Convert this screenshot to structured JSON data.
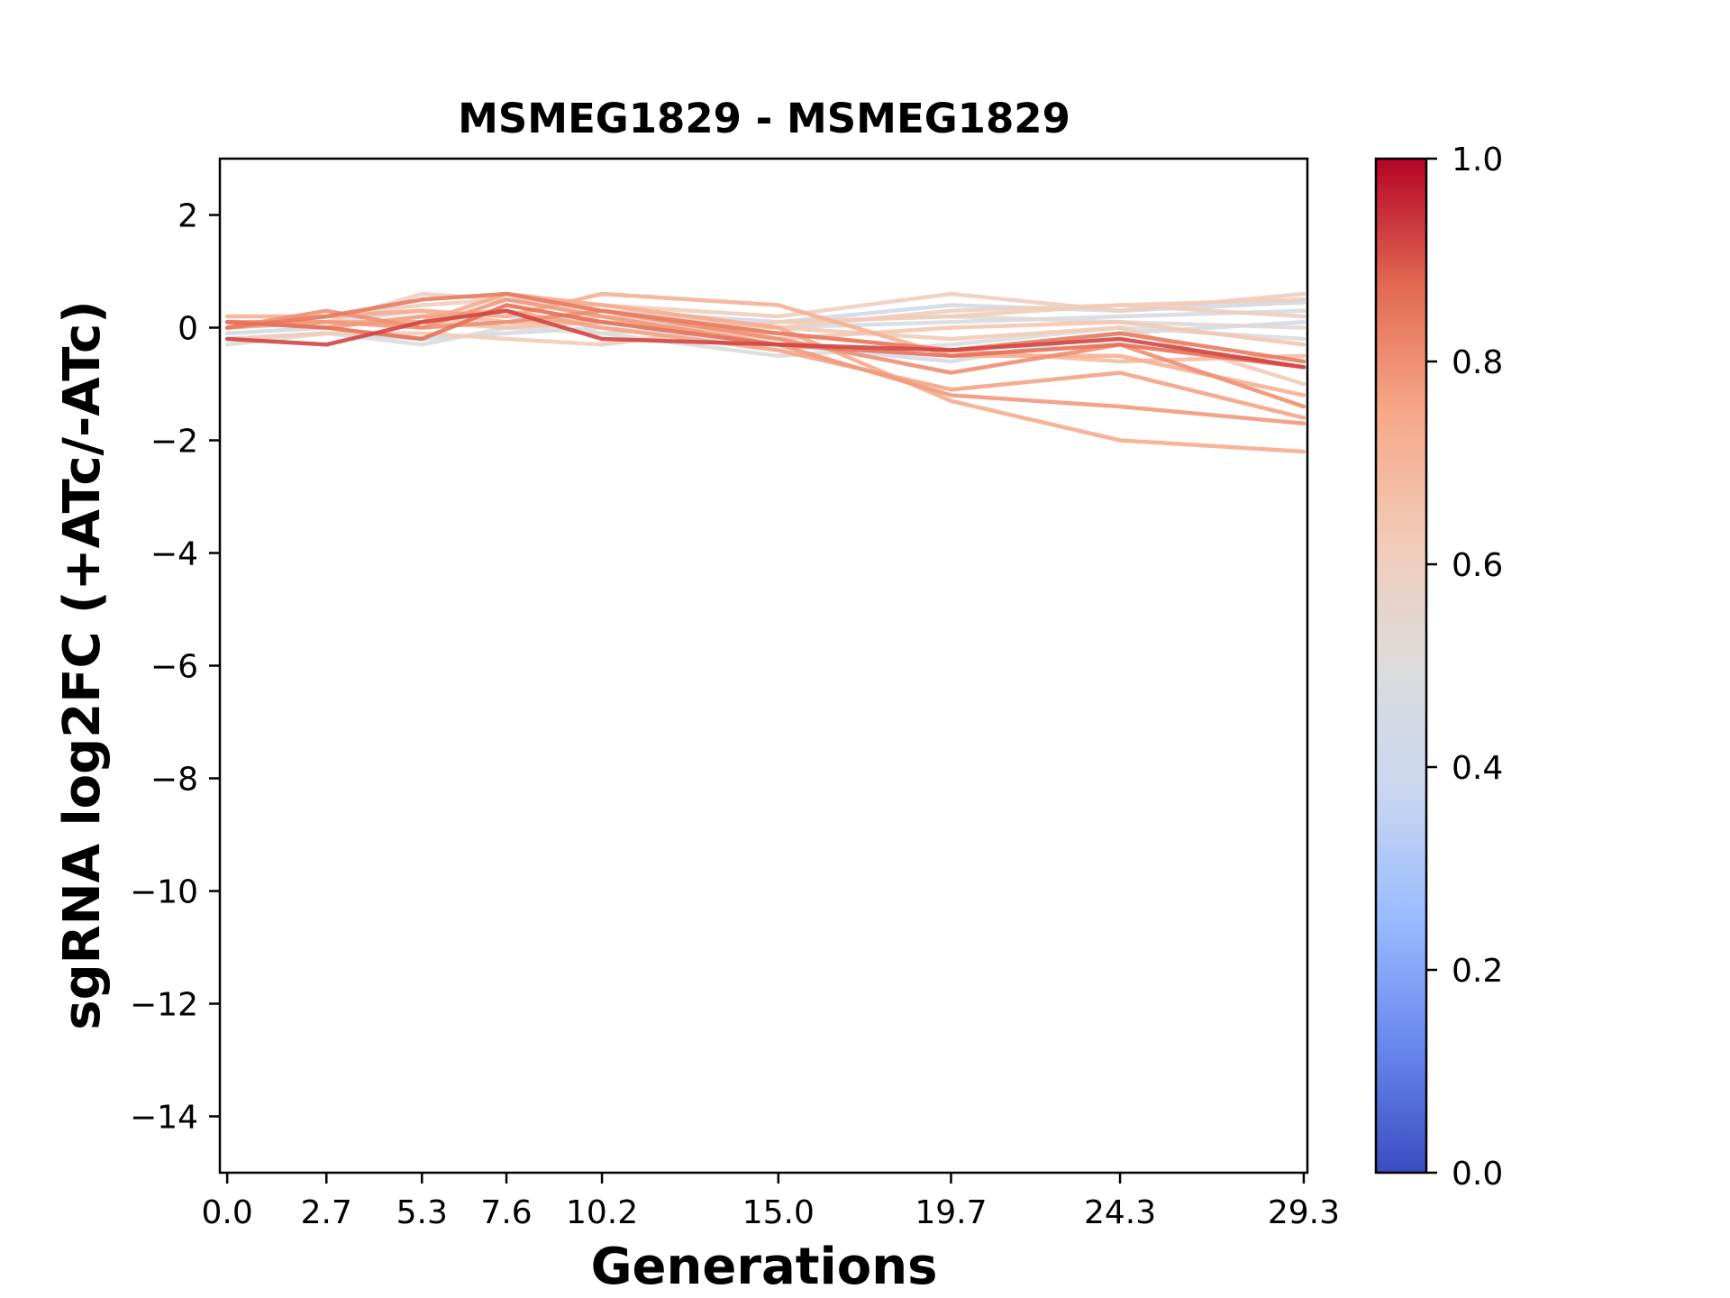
{
  "chart_data": {
    "type": "line",
    "title": "MSMEG1829 - MSMEG1829",
    "xlabel": "Generations",
    "ylabel": "sgRNA log2FC (+ATc/-ATc)",
    "x": [
      0.0,
      2.7,
      5.3,
      7.6,
      10.2,
      15.0,
      19.7,
      24.3,
      29.3
    ],
    "x_tick_labels": [
      "0.0",
      "2.7",
      "5.3",
      "7.6",
      "10.2",
      "15.0",
      "19.7",
      "24.3",
      "29.3"
    ],
    "xlim": [
      -0.2,
      29.4
    ],
    "ylim": [
      -15,
      3
    ],
    "y_ticks": [
      2,
      0,
      -2,
      -4,
      -6,
      -8,
      -10,
      -12,
      -14
    ],
    "y_tick_labels": [
      "2",
      "0",
      "−2",
      "−4",
      "−6",
      "−8",
      "−10",
      "−12",
      "−14"
    ],
    "colormap": "coolwarm",
    "colorbar": {
      "ticks": [
        0.0,
        0.2,
        0.4,
        0.6,
        0.8,
        1.0
      ],
      "tick_labels": [
        "0.0",
        "0.2",
        "0.4",
        "0.6",
        "0.8",
        "1.0"
      ],
      "range": [
        0,
        1
      ],
      "stops": [
        "#3b4cc0",
        "#6788ee",
        "#9abbff",
        "#c9d7f0",
        "#dddcdc",
        "#f2cbb7",
        "#f7a889",
        "#e26952",
        "#b40426"
      ]
    },
    "grid": false,
    "series": [
      {
        "c": 0.42,
        "values": [
          -0.1,
          0.0,
          0.2,
          0.0,
          0.3,
          0.1,
          0.4,
          0.3,
          0.45
        ]
      },
      {
        "c": 0.44,
        "values": [
          -0.2,
          -0.1,
          -0.2,
          -0.1,
          0.0,
          -0.3,
          -0.6,
          -0.1,
          0.1
        ]
      },
      {
        "c": 0.46,
        "values": [
          0.0,
          0.1,
          0.3,
          0.2,
          0.1,
          0.0,
          0.1,
          0.2,
          0.3
        ]
      },
      {
        "c": 0.5,
        "values": [
          -0.3,
          -0.1,
          -0.3,
          0.0,
          -0.1,
          -0.5,
          -0.3,
          0.0,
          -0.2
        ]
      },
      {
        "c": 0.52,
        "values": [
          0.1,
          0.0,
          0.2,
          0.1,
          -0.1,
          0.1,
          0.2,
          0.1,
          0.0
        ]
      },
      {
        "c": 0.6,
        "values": [
          0.1,
          0.1,
          0.6,
          0.5,
          0.4,
          0.2,
          0.6,
          0.3,
          0.6
        ]
      },
      {
        "c": 0.6,
        "values": [
          0.0,
          0.2,
          0.4,
          0.5,
          0.3,
          0.0,
          0.3,
          0.4,
          0.2
        ]
      },
      {
        "c": 0.62,
        "values": [
          -0.2,
          -0.1,
          -0.1,
          -0.2,
          -0.3,
          0.1,
          0.2,
          0.4,
          0.5
        ]
      },
      {
        "c": 0.62,
        "values": [
          0.1,
          0.0,
          0.2,
          0.0,
          0.2,
          0.0,
          -0.2,
          0.0,
          -1.0
        ]
      },
      {
        "c": 0.64,
        "values": [
          0.0,
          0.1,
          0.1,
          0.0,
          0.1,
          -0.2,
          0.0,
          0.1,
          -0.3
        ]
      },
      {
        "c": 0.68,
        "values": [
          0.0,
          0.2,
          0.3,
          0.1,
          0.1,
          -0.1,
          -0.4,
          -0.6,
          -0.5
        ]
      },
      {
        "c": 0.72,
        "values": [
          0.2,
          0.2,
          0.3,
          0.2,
          0.6,
          0.4,
          -0.5,
          -0.5,
          -1.2
        ]
      },
      {
        "c": 0.74,
        "values": [
          0.0,
          0.1,
          0.1,
          0.6,
          0.4,
          0.0,
          -1.3,
          -2.0,
          -2.2
        ]
      },
      {
        "c": 0.76,
        "values": [
          0.1,
          0.0,
          0.2,
          0.3,
          0.0,
          -0.4,
          -1.1,
          -0.8,
          -1.6
        ]
      },
      {
        "c": 0.78,
        "values": [
          0.1,
          0.1,
          0.0,
          0.5,
          0.2,
          -0.3,
          -1.2,
          -1.4,
          -1.7
        ]
      },
      {
        "c": 0.8,
        "values": [
          0.0,
          0.3,
          0.0,
          0.1,
          0.3,
          -0.2,
          -0.8,
          -0.3,
          -1.4
        ]
      },
      {
        "c": 0.84,
        "values": [
          0.0,
          0.2,
          0.5,
          0.6,
          0.3,
          -0.1,
          -0.4,
          -0.1,
          -0.6
        ]
      },
      {
        "c": 0.86,
        "values": [
          0.1,
          0.0,
          -0.2,
          0.4,
          0.1,
          -0.3,
          -0.5,
          -0.3,
          -0.7
        ]
      },
      {
        "c": 0.92,
        "values": [
          -0.2,
          -0.3,
          0.1,
          0.3,
          -0.2,
          -0.3,
          -0.4,
          -0.2,
          -0.7
        ]
      }
    ]
  }
}
